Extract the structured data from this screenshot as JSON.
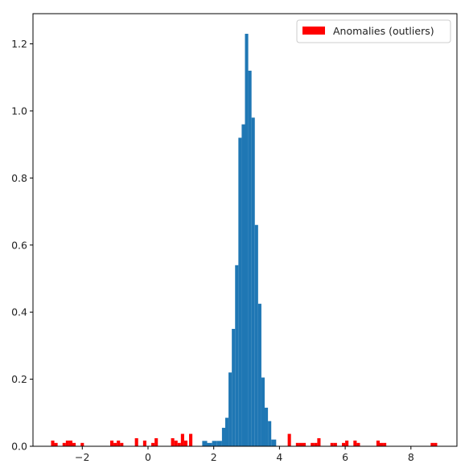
{
  "chart_data": {
    "type": "histogram",
    "title": "",
    "xlabel": "",
    "ylabel": "",
    "xlim": [
      -3.5,
      9.4
    ],
    "ylim": [
      0,
      1.29
    ],
    "xticks": [
      -2,
      0,
      2,
      4,
      6,
      8
    ],
    "xtick_labels": [
      "−2",
      "0",
      "2",
      "4",
      "6",
      "8"
    ],
    "yticks": [
      0.0,
      0.2,
      0.4,
      0.6,
      0.8,
      1.0,
      1.2
    ],
    "ytick_labels": [
      "0.0",
      "0.2",
      "0.4",
      "0.6",
      "0.8",
      "1.0",
      "1.2"
    ],
    "grid": false,
    "legend_position": "top-right",
    "series": [
      {
        "name": "",
        "color": "#1f77b4",
        "bins": [
          [
            1.65,
            1.8,
            0.016
          ],
          [
            1.8,
            1.95,
            0.01
          ],
          [
            1.95,
            2.1,
            0.016
          ],
          [
            2.1,
            2.25,
            0.016
          ],
          [
            2.25,
            2.35,
            0.055
          ],
          [
            2.35,
            2.45,
            0.085
          ],
          [
            2.45,
            2.55,
            0.22
          ],
          [
            2.55,
            2.65,
            0.35
          ],
          [
            2.65,
            2.75,
            0.54
          ],
          [
            2.75,
            2.85,
            0.92
          ],
          [
            2.85,
            2.95,
            0.96
          ],
          [
            2.95,
            3.05,
            1.23
          ],
          [
            3.05,
            3.15,
            1.12
          ],
          [
            3.15,
            3.25,
            0.98
          ],
          [
            3.25,
            3.35,
            0.66
          ],
          [
            3.35,
            3.45,
            0.425
          ],
          [
            3.45,
            3.55,
            0.205
          ],
          [
            3.55,
            3.65,
            0.115
          ],
          [
            3.65,
            3.75,
            0.075
          ],
          [
            3.75,
            3.9,
            0.02
          ]
        ]
      },
      {
        "name": "Anomalies (outliers)",
        "color": "#ff0000",
        "bins": [
          [
            -2.95,
            -2.85,
            0.017
          ],
          [
            -2.85,
            -2.75,
            0.01
          ],
          [
            -2.6,
            -2.5,
            0.01
          ],
          [
            -2.5,
            -2.4,
            0.017
          ],
          [
            -2.4,
            -2.3,
            0.017
          ],
          [
            -2.3,
            -2.2,
            0.01
          ],
          [
            -2.05,
            -1.95,
            0.01
          ],
          [
            -1.15,
            -1.05,
            0.017
          ],
          [
            -1.05,
            -0.95,
            0.01
          ],
          [
            -0.95,
            -0.85,
            0.017
          ],
          [
            -0.85,
            -0.75,
            0.01
          ],
          [
            -0.4,
            -0.3,
            0.024
          ],
          [
            -0.15,
            -0.05,
            0.017
          ],
          [
            0.1,
            0.2,
            0.01
          ],
          [
            0.2,
            0.3,
            0.024
          ],
          [
            0.7,
            0.8,
            0.024
          ],
          [
            0.8,
            0.9,
            0.017
          ],
          [
            0.9,
            1.0,
            0.01
          ],
          [
            1.0,
            1.1,
            0.037
          ],
          [
            1.1,
            1.2,
            0.017
          ],
          [
            1.25,
            1.35,
            0.037
          ],
          [
            4.25,
            4.35,
            0.037
          ],
          [
            4.5,
            4.6,
            0.01
          ],
          [
            4.6,
            4.7,
            0.01
          ],
          [
            4.7,
            4.8,
            0.01
          ],
          [
            4.95,
            5.05,
            0.01
          ],
          [
            5.05,
            5.15,
            0.01
          ],
          [
            5.15,
            5.25,
            0.024
          ],
          [
            5.55,
            5.65,
            0.01
          ],
          [
            5.65,
            5.75,
            0.01
          ],
          [
            5.9,
            6.0,
            0.01
          ],
          [
            6.0,
            6.1,
            0.017
          ],
          [
            6.25,
            6.35,
            0.017
          ],
          [
            6.35,
            6.45,
            0.01
          ],
          [
            6.95,
            7.05,
            0.017
          ],
          [
            7.05,
            7.15,
            0.01
          ],
          [
            7.15,
            7.25,
            0.01
          ],
          [
            8.6,
            8.7,
            0.01
          ],
          [
            8.7,
            8.8,
            0.01
          ]
        ]
      }
    ]
  }
}
